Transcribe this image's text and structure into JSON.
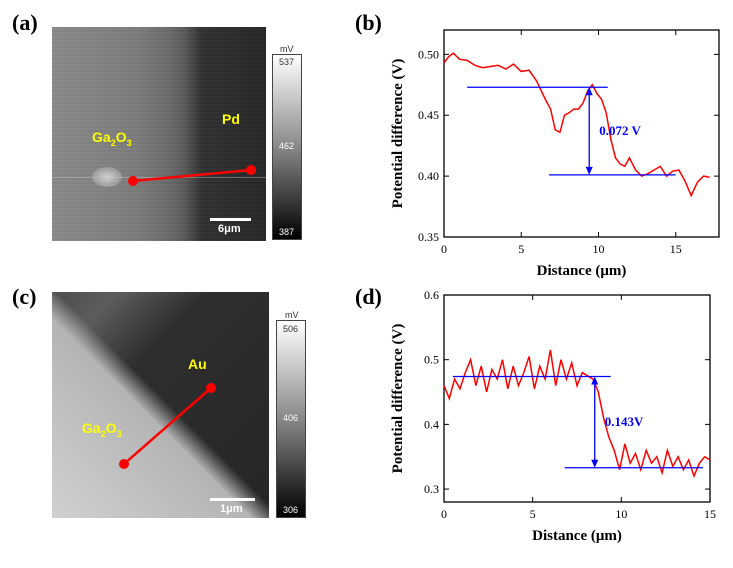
{
  "panels": {
    "a": {
      "label": "(a)",
      "left_material": "Ga2O3",
      "right_material": "Pd",
      "scalebar": "6μm",
      "colorbar": {
        "unit": "mV",
        "max": "537",
        "mid": "462",
        "min": "387"
      }
    },
    "b": {
      "label": "(b)"
    },
    "c": {
      "label": "(c)",
      "left_material": "Ga2O3",
      "right_material": "Au",
      "scalebar": "1μm",
      "colorbar": {
        "unit": "mV",
        "max": "506",
        "mid": "406",
        "min": "306"
      }
    },
    "d": {
      "label": "(d)"
    }
  },
  "chart_data": [
    {
      "type": "line",
      "panel": "b",
      "xlabel": "Distance (μm)",
      "ylabel": "Potential difference (V)",
      "xlim": [
        0,
        17.8
      ],
      "ylim": [
        0.35,
        0.52
      ],
      "xticks": [
        "0",
        "5",
        "10",
        "15"
      ],
      "yticks": [
        "0.35",
        "0.40",
        "0.45",
        "0.50"
      ],
      "annotation": "0.072 V",
      "upper_level": 0.473,
      "lower_level": 0.401,
      "upper_range": [
        1.5,
        10.6
      ],
      "lower_range": [
        6.8,
        15.0
      ],
      "arrow_x": 9.4,
      "series": [
        {
          "color": "#ff0000",
          "x": [
            0,
            0.3,
            0.6,
            1.0,
            1.5,
            2.0,
            2.5,
            3.0,
            3.5,
            4.0,
            4.5,
            5.0,
            5.5,
            6.0,
            6.3,
            6.6,
            6.9,
            7.2,
            7.5,
            7.8,
            8.1,
            8.4,
            8.7,
            9.0,
            9.3,
            9.6,
            9.9,
            10.2,
            10.5,
            10.8,
            11.1,
            11.4,
            11.7,
            12.0,
            12.4,
            12.8,
            13.2,
            13.6,
            14.0,
            14.4,
            14.8,
            15.2,
            15.6,
            16.0,
            16.4,
            16.8,
            17.2
          ],
          "y": [
            0.493,
            0.498,
            0.501,
            0.496,
            0.495,
            0.491,
            0.489,
            0.49,
            0.491,
            0.488,
            0.492,
            0.486,
            0.487,
            0.478,
            0.47,
            0.462,
            0.455,
            0.438,
            0.436,
            0.45,
            0.452,
            0.455,
            0.455,
            0.46,
            0.47,
            0.475,
            0.468,
            0.463,
            0.452,
            0.43,
            0.415,
            0.41,
            0.408,
            0.415,
            0.405,
            0.4,
            0.402,
            0.405,
            0.408,
            0.4,
            0.404,
            0.405,
            0.396,
            0.384,
            0.395,
            0.4,
            0.399
          ]
        }
      ]
    },
    {
      "type": "line",
      "panel": "d",
      "xlabel": "Distance (μm)",
      "ylabel": "Potential difference (V)",
      "xlim": [
        0,
        15
      ],
      "ylim": [
        0.28,
        0.6
      ],
      "xticks": [
        "0",
        "5",
        "10",
        "15"
      ],
      "yticks": [
        "0.3",
        "0.4",
        "0.5",
        "0.6"
      ],
      "annotation": "0.143V",
      "upper_level": 0.474,
      "lower_level": 0.333,
      "upper_range": [
        0.5,
        9.4
      ],
      "lower_range": [
        6.8,
        14.6
      ],
      "arrow_x": 8.5,
      "series": [
        {
          "color": "#ff0000",
          "x": [
            0,
            0.3,
            0.6,
            0.9,
            1.2,
            1.5,
            1.8,
            2.1,
            2.4,
            2.7,
            3.0,
            3.3,
            3.6,
            3.9,
            4.2,
            4.5,
            4.8,
            5.1,
            5.4,
            5.7,
            6.0,
            6.3,
            6.6,
            6.9,
            7.2,
            7.5,
            7.8,
            8.1,
            8.4,
            8.7,
            9.0,
            9.3,
            9.6,
            9.9,
            10.2,
            10.5,
            10.8,
            11.1,
            11.4,
            11.7,
            12.0,
            12.3,
            12.6,
            12.9,
            13.2,
            13.5,
            13.8,
            14.1,
            14.4,
            14.7,
            15.0
          ],
          "y": [
            0.46,
            0.44,
            0.47,
            0.455,
            0.48,
            0.5,
            0.46,
            0.49,
            0.45,
            0.485,
            0.47,
            0.5,
            0.455,
            0.49,
            0.46,
            0.48,
            0.505,
            0.455,
            0.49,
            0.47,
            0.515,
            0.46,
            0.5,
            0.47,
            0.495,
            0.46,
            0.48,
            0.475,
            0.47,
            0.45,
            0.41,
            0.38,
            0.36,
            0.33,
            0.37,
            0.34,
            0.355,
            0.33,
            0.36,
            0.34,
            0.35,
            0.325,
            0.36,
            0.335,
            0.35,
            0.33,
            0.345,
            0.32,
            0.34,
            0.35,
            0.345
          ]
        }
      ]
    }
  ]
}
